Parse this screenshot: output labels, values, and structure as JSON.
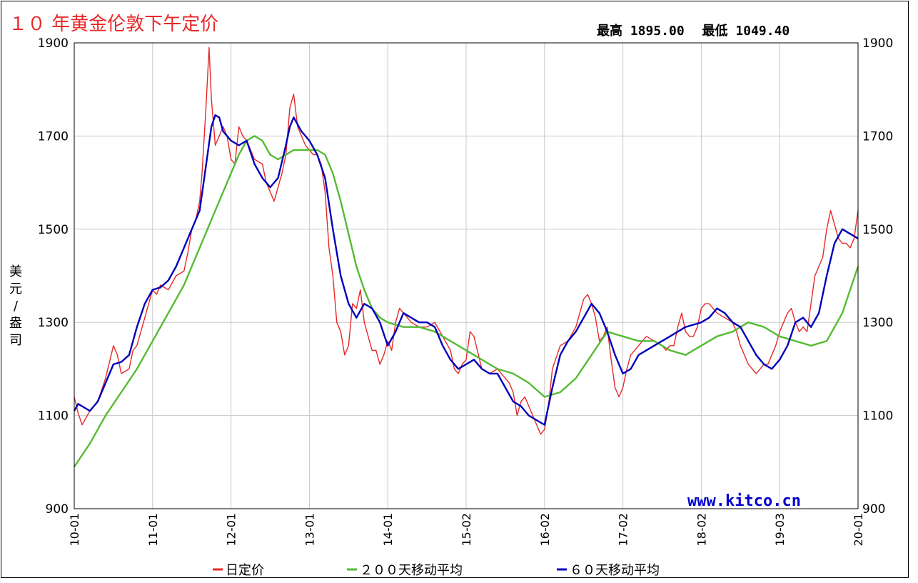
{
  "header": {
    "title": "１０ 年黄金伦敦下午定价",
    "high_label": "最高",
    "high_value": "1895.00",
    "low_label": "最低",
    "low_value": "1049.40"
  },
  "watermark": "www.kitco.cn",
  "chart_data": {
    "type": "line",
    "title": "１０ 年黄金伦敦下午定价",
    "ylabel": "美元/盎司",
    "xlabel": "",
    "ylim": [
      900,
      1900
    ],
    "yticks": [
      "1900",
      "1700",
      "1500",
      "1300",
      "1100",
      "900"
    ],
    "ytick_values": [
      1900,
      1700,
      1500,
      1300,
      1100,
      900
    ],
    "xlim": [
      2010.0,
      2020.0
    ],
    "xticks": [
      "10-01",
      "11-01",
      "12-01",
      "13-01",
      "14-01",
      "15-02",
      "16-02",
      "17-02",
      "18-02",
      "19-03",
      "20-01"
    ],
    "xtick_values": [
      2010.0,
      2011.0,
      2012.0,
      2013.0,
      2014.0,
      2015.0,
      2016.0,
      2017.0,
      2018.0,
      2019.0,
      2020.0
    ],
    "grid": true,
    "legend_position": "bottom",
    "series": [
      {
        "name": "日定价",
        "color": "#e82828",
        "x": [
          2010.0,
          2010.05,
          2010.1,
          2010.2,
          2010.3,
          2010.4,
          2010.5,
          2010.55,
          2010.6,
          2010.7,
          2010.75,
          2010.8,
          2010.9,
          2011.0,
          2011.05,
          2011.1,
          2011.2,
          2011.3,
          2011.4,
          2011.45,
          2011.5,
          2011.55,
          2011.6,
          2011.63,
          2011.68,
          2011.72,
          2011.75,
          2011.8,
          2011.85,
          2011.9,
          2011.95,
          2012.0,
          2012.05,
          2012.1,
          2012.15,
          2012.2,
          2012.3,
          2012.4,
          2012.45,
          2012.5,
          2012.55,
          2012.6,
          2012.65,
          2012.7,
          2012.75,
          2012.8,
          2012.85,
          2012.9,
          2012.95,
          2013.0,
          2013.05,
          2013.1,
          2013.15,
          2013.2,
          2013.25,
          2013.3,
          2013.35,
          2013.4,
          2013.45,
          2013.5,
          2013.55,
          2013.6,
          2013.65,
          2013.7,
          2013.75,
          2013.8,
          2013.85,
          2013.9,
          2013.95,
          2014.0,
          2014.05,
          2014.1,
          2014.15,
          2014.2,
          2014.3,
          2014.4,
          2014.5,
          2014.6,
          2014.7,
          2014.8,
          2014.85,
          2014.9,
          2014.95,
          2015.0,
          2015.05,
          2015.1,
          2015.2,
          2015.3,
          2015.4,
          2015.5,
          2015.55,
          2015.6,
          2015.65,
          2015.7,
          2015.75,
          2015.8,
          2015.85,
          2015.9,
          2015.95,
          2016.0,
          2016.05,
          2016.1,
          2016.2,
          2016.3,
          2016.4,
          2016.5,
          2016.55,
          2016.6,
          2016.65,
          2016.7,
          2016.75,
          2016.8,
          2016.85,
          2016.9,
          2016.95,
          2017.0,
          2017.05,
          2017.1,
          2017.2,
          2017.3,
          2017.4,
          2017.5,
          2017.55,
          2017.6,
          2017.65,
          2017.7,
          2017.75,
          2017.8,
          2017.85,
          2017.9,
          2017.95,
          2018.0,
          2018.05,
          2018.1,
          2018.2,
          2018.3,
          2018.4,
          2018.45,
          2018.5,
          2018.55,
          2018.6,
          2018.65,
          2018.7,
          2018.75,
          2018.8,
          2018.85,
          2018.9,
          2018.95,
          2019.0,
          2019.05,
          2019.1,
          2019.15,
          2019.2,
          2019.25,
          2019.3,
          2019.35,
          2019.4,
          2019.45,
          2019.5,
          2019.55,
          2019.6,
          2019.65,
          2019.7,
          2019.75,
          2019.8,
          2019.85,
          2019.9,
          2019.95,
          2020.0
        ],
        "values": [
          1140,
          1105,
          1080,
          1110,
          1130,
          1180,
          1250,
          1230,
          1190,
          1200,
          1240,
          1250,
          1310,
          1370,
          1360,
          1380,
          1370,
          1400,
          1410,
          1450,
          1500,
          1520,
          1560,
          1620,
          1760,
          1890,
          1780,
          1680,
          1700,
          1720,
          1700,
          1650,
          1640,
          1720,
          1700,
          1690,
          1650,
          1640,
          1600,
          1580,
          1560,
          1590,
          1620,
          1660,
          1760,
          1790,
          1720,
          1700,
          1680,
          1670,
          1660,
          1660,
          1640,
          1580,
          1460,
          1400,
          1300,
          1280,
          1230,
          1250,
          1340,
          1330,
          1370,
          1300,
          1270,
          1240,
          1240,
          1210,
          1230,
          1260,
          1240,
          1300,
          1330,
          1320,
          1300,
          1290,
          1290,
          1300,
          1270,
          1240,
          1200,
          1190,
          1210,
          1220,
          1280,
          1270,
          1200,
          1190,
          1200,
          1180,
          1170,
          1150,
          1100,
          1130,
          1140,
          1120,
          1100,
          1080,
          1060,
          1070,
          1120,
          1200,
          1250,
          1260,
          1290,
          1350,
          1360,
          1340,
          1310,
          1260,
          1270,
          1290,
          1220,
          1160,
          1140,
          1160,
          1200,
          1230,
          1250,
          1270,
          1260,
          1250,
          1240,
          1250,
          1250,
          1290,
          1320,
          1280,
          1270,
          1270,
          1290,
          1330,
          1340,
          1340,
          1320,
          1310,
          1300,
          1280,
          1250,
          1230,
          1210,
          1200,
          1190,
          1200,
          1210,
          1210,
          1230,
          1250,
          1280,
          1300,
          1320,
          1330,
          1300,
          1280,
          1290,
          1280,
          1340,
          1400,
          1420,
          1440,
          1500,
          1540,
          1510,
          1480,
          1470,
          1470,
          1460,
          1480,
          1540
        ]
      },
      {
        "name": "２００天移动平均",
        "color": "#55bb33",
        "x": [
          2010.0,
          2010.2,
          2010.4,
          2010.6,
          2010.8,
          2011.0,
          2011.2,
          2011.4,
          2011.6,
          2011.8,
          2012.0,
          2012.1,
          2012.2,
          2012.3,
          2012.4,
          2012.5,
          2012.6,
          2012.7,
          2012.8,
          2013.0,
          2013.1,
          2013.2,
          2013.3,
          2013.4,
          2013.5,
          2013.6,
          2013.7,
          2013.8,
          2013.9,
          2014.0,
          2014.2,
          2014.4,
          2014.6,
          2014.8,
          2015.0,
          2015.2,
          2015.4,
          2015.6,
          2015.8,
          2016.0,
          2016.2,
          2016.4,
          2016.6,
          2016.8,
          2017.0,
          2017.2,
          2017.4,
          2017.6,
          2017.8,
          2018.0,
          2018.2,
          2018.4,
          2018.6,
          2018.8,
          2019.0,
          2019.2,
          2019.4,
          2019.6,
          2019.8,
          2020.0
        ],
        "values": [
          990,
          1040,
          1100,
          1150,
          1200,
          1260,
          1320,
          1380,
          1460,
          1540,
          1620,
          1660,
          1690,
          1700,
          1690,
          1660,
          1650,
          1660,
          1670,
          1670,
          1670,
          1660,
          1620,
          1560,
          1490,
          1420,
          1370,
          1330,
          1310,
          1300,
          1290,
          1290,
          1280,
          1260,
          1240,
          1220,
          1200,
          1190,
          1170,
          1140,
          1150,
          1180,
          1230,
          1280,
          1270,
          1260,
          1260,
          1240,
          1230,
          1250,
          1270,
          1280,
          1300,
          1290,
          1270,
          1260,
          1250,
          1260,
          1320,
          1420
        ]
      },
      {
        "name": "６０天移动平均",
        "color": "#0000bb",
        "x": [
          2010.0,
          2010.05,
          2010.1,
          2010.2,
          2010.3,
          2010.4,
          2010.5,
          2010.6,
          2010.7,
          2010.8,
          2010.9,
          2011.0,
          2011.1,
          2011.2,
          2011.3,
          2011.4,
          2011.5,
          2011.6,
          2011.65,
          2011.7,
          2011.75,
          2011.8,
          2011.85,
          2011.9,
          2012.0,
          2012.1,
          2012.2,
          2012.3,
          2012.4,
          2012.5,
          2012.6,
          2012.7,
          2012.75,
          2012.8,
          2012.9,
          2013.0,
          2013.1,
          2013.2,
          2013.3,
          2013.4,
          2013.5,
          2013.6,
          2013.7,
          2013.8,
          2013.9,
          2014.0,
          2014.1,
          2014.2,
          2014.3,
          2014.4,
          2014.5,
          2014.6,
          2014.7,
          2014.8,
          2014.9,
          2015.0,
          2015.1,
          2015.2,
          2015.3,
          2015.4,
          2015.5,
          2015.6,
          2015.7,
          2015.8,
          2015.9,
          2016.0,
          2016.1,
          2016.2,
          2016.3,
          2016.4,
          2016.5,
          2016.6,
          2016.7,
          2016.8,
          2016.9,
          2017.0,
          2017.1,
          2017.2,
          2017.3,
          2017.4,
          2017.5,
          2017.6,
          2017.7,
          2017.8,
          2017.9,
          2018.0,
          2018.1,
          2018.2,
          2018.3,
          2018.4,
          2018.5,
          2018.6,
          2018.7,
          2018.8,
          2018.9,
          2019.0,
          2019.1,
          2019.2,
          2019.3,
          2019.4,
          2019.5,
          2019.6,
          2019.7,
          2019.8,
          2019.9,
          2020.0
        ],
        "values": [
          1110,
          1125,
          1120,
          1110,
          1130,
          1170,
          1210,
          1215,
          1230,
          1290,
          1340,
          1370,
          1375,
          1390,
          1420,
          1460,
          1500,
          1540,
          1600,
          1660,
          1720,
          1745,
          1740,
          1710,
          1690,
          1680,
          1690,
          1640,
          1610,
          1590,
          1610,
          1680,
          1720,
          1740,
          1710,
          1690,
          1660,
          1610,
          1500,
          1400,
          1340,
          1310,
          1340,
          1330,
          1300,
          1250,
          1280,
          1320,
          1310,
          1300,
          1300,
          1290,
          1250,
          1220,
          1200,
          1210,
          1220,
          1200,
          1190,
          1190,
          1160,
          1130,
          1120,
          1100,
          1090,
          1080,
          1160,
          1230,
          1260,
          1280,
          1310,
          1340,
          1320,
          1280,
          1230,
          1190,
          1200,
          1230,
          1240,
          1250,
          1260,
          1270,
          1280,
          1290,
          1295,
          1300,
          1310,
          1330,
          1320,
          1300,
          1290,
          1260,
          1230,
          1210,
          1200,
          1220,
          1250,
          1300,
          1310,
          1290,
          1320,
          1400,
          1470,
          1500,
          1490,
          1480
        ]
      }
    ]
  },
  "legend": [
    {
      "label": "日定价",
      "color": "#e82828"
    },
    {
      "label": "２００天移动平均",
      "color": "#55bb33"
    },
    {
      "label": "６０天移动平均",
      "color": "#0000bb"
    }
  ]
}
